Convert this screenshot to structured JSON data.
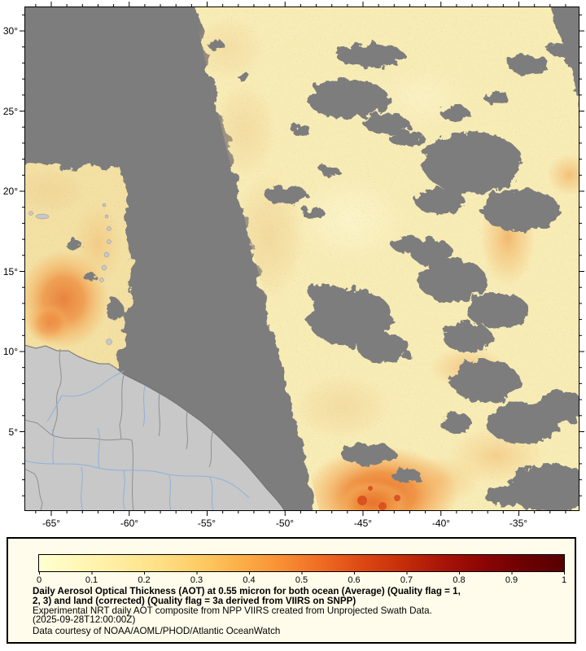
{
  "title": "Daily Aerosol Optical Thickness (AOT) map",
  "colors": {
    "page-bg": "#ffffff",
    "map-bg": "#7d7d7d",
    "land": "#c8c8c8",
    "coast": "#707070",
    "country-border": "#8f8f8f",
    "river": "#8fb0da",
    "swath-base": "#f8ecb5",
    "swath-base-left": "#f3e0a2",
    "aot-orange": "#ef8a35",
    "aot-red": "#d5491b",
    "panel-bg": "#fffceb",
    "frame": "#000000"
  },
  "map": {
    "lat_ticks": [
      {
        "label": "30°"
      },
      {
        "label": "25°"
      },
      {
        "label": "20°"
      },
      {
        "label": "15°"
      },
      {
        "label": "10°"
      },
      {
        "label": "5°"
      }
    ],
    "lon_ticks": [
      {
        "label": "-65°"
      },
      {
        "label": "-60°"
      },
      {
        "label": "-55°"
      },
      {
        "label": "-50°"
      },
      {
        "label": "-45°"
      },
      {
        "label": "-40°"
      },
      {
        "label": "-35°"
      }
    ]
  },
  "legend": {
    "colorbar": {
      "min": 0,
      "max": 1,
      "tick_labels": [
        "0",
        "0.1",
        "0.2",
        "0.3",
        "0.4",
        "0.5",
        "0.6",
        "0.7",
        "0.8",
        "0.9",
        "1"
      ],
      "stops": [
        "#ffffd2",
        "#fff7b6",
        "#ffec9e",
        "#ffdf85",
        "#fecb63",
        "#fcae47",
        "#f98f34",
        "#ef6b22",
        "#dd4813",
        "#c52e0a",
        "#a81407",
        "#8c0505",
        "#6e0103",
        "#570001"
      ]
    },
    "caption": {
      "line1": "Daily Aerosol Optical Thickness (AOT) at 0.55 micron for both ocean (Average) (Quality flag = 1,",
      "line2": "2, 3) and land (corrected) (Quality flag = 3a derived from VIIRS on SNPP)",
      "line3": "Experimental NRT daily AOT composite from NPP VIIRS created from Unprojected Swath Data.",
      "line4": "(2025-09-28T12:00:00Z)",
      "line5": "Data courtesy of NOAA/AOML/PHOD/Atlantic OceanWatch"
    }
  }
}
